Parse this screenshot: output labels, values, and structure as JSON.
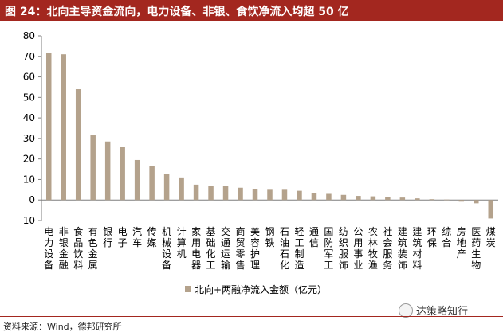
{
  "title": "图 24：北向主导资金流向，电力设备、非银、食饮净流入均超 50 亿",
  "source": "资料来源：Wind，德邦研究所",
  "watermark": "达策略知行",
  "colors": {
    "title_bg": "#a3271f",
    "bar": "#b4a28c",
    "axis": "#7f7f7f"
  },
  "chart_data": {
    "type": "bar",
    "ylim": [
      -10,
      80
    ],
    "yticks": [
      -10,
      0,
      10,
      20,
      30,
      40,
      50,
      60,
      70,
      80
    ],
    "grid": false,
    "legend_position": "bottom-center",
    "categories": [
      "电力设备",
      "非银金融",
      "食品饮料",
      "有色金属",
      "银行",
      "电子",
      "汽车",
      "传媒",
      "机械设备",
      "计算机",
      "家用电器",
      "基础化工",
      "交通运输",
      "商贸零售",
      "美容护理",
      "钢铁",
      "石油石化",
      "轻工制造",
      "通信",
      "国防军工",
      "纺织服饰",
      "公用事业",
      "农林牧渔",
      "社会服务",
      "建筑装饰",
      "建筑材料",
      "环保",
      "综合",
      "房地产",
      "医药生物",
      "煤炭"
    ],
    "series": [
      {
        "name": "北向+两融净流入金额（亿元）",
        "values": [
          71.5,
          71,
          54,
          31.5,
          28.5,
          26,
          19.5,
          16.5,
          12.5,
          11,
          7.5,
          7,
          7,
          6,
          5.5,
          5,
          5,
          4.5,
          3.5,
          3,
          2.5,
          2,
          1.8,
          1.6,
          1.2,
          0.8,
          0.4,
          0.2,
          -0.8,
          -1.6,
          -9
        ]
      }
    ]
  }
}
